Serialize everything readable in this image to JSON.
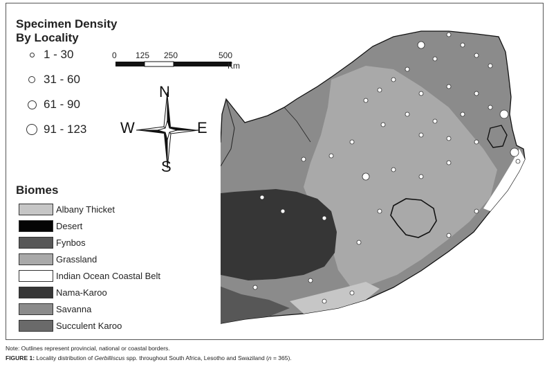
{
  "legend": {
    "density_title_line1": "Specimen Density",
    "density_title_line2": "By Locality",
    "size_classes": [
      {
        "label": "1 - 30"
      },
      {
        "label": "31 - 60"
      },
      {
        "label": "61 - 90"
      },
      {
        "label": "91 - 123"
      }
    ],
    "biomes_title": "Biomes",
    "biomes": [
      {
        "label": "Albany Thicket",
        "color": "#c6c6c6"
      },
      {
        "label": "Desert",
        "color": "#050505"
      },
      {
        "label": "Fynbos",
        "color": "#575757"
      },
      {
        "label": "Grassland",
        "color": "#a9a9a9"
      },
      {
        "label": "Indian Ocean Coastal Belt",
        "color": "#ffffff"
      },
      {
        "label": "Nama-Karoo",
        "color": "#363636"
      },
      {
        "label": "Savanna",
        "color": "#8b8b8b"
      },
      {
        "label": "Succulent Karoo",
        "color": "#6a6a6a"
      }
    ]
  },
  "scale_bar": {
    "ticks": [
      "0",
      "125",
      "250",
      "500"
    ],
    "unit": "Km"
  },
  "compass": {
    "n": "N",
    "s": "S",
    "e": "E",
    "w": "W"
  },
  "note": "Note: Outlines represent provincial, national or coastal borders.",
  "caption": {
    "label": "FIGURE 1:",
    "text_before": " Locality distribution of ",
    "genus": "Gerbilliscus",
    "text_after": " spp. throughout South Africa, Lesotho and Swaziland (",
    "n_symbol": "n",
    "n_value": " = 365)."
  }
}
